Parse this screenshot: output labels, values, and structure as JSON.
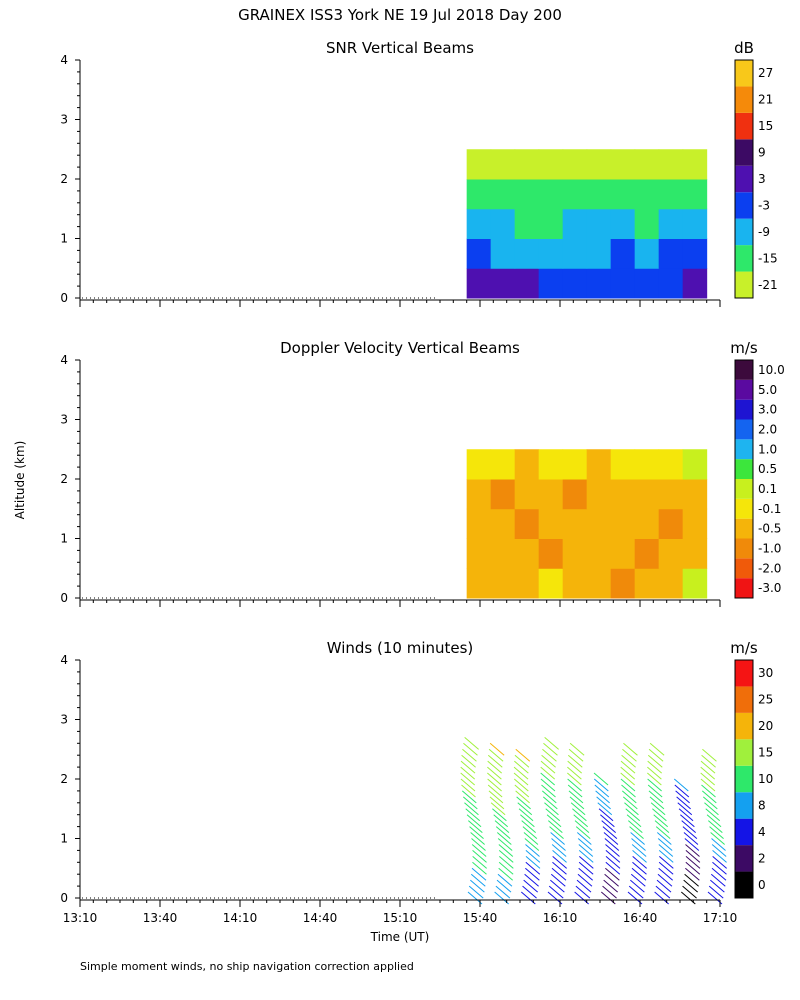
{
  "figure": {
    "title": "GRAINEX ISS3 York NE  19 Jul 2018 Day 200",
    "y_label": "Altitude (km)",
    "x_label": "Time (UT)",
    "footnote": "Simple moment winds, no ship navigation correction applied"
  },
  "colors": {
    "snr": [
      "#c8f02a",
      "#2ee86a",
      "#19b4ef",
      "#0b3ff0",
      "#4e10b0",
      "#3c0a64",
      "#f03010",
      "#f58a0a",
      "#f8c81a"
    ],
    "velocity": [
      "#f01414",
      "#f05a0a",
      "#f08a0a",
      "#f5b40a",
      "#f5e60a",
      "#c8f01e",
      "#3ce63c",
      "#1eb4f0",
      "#1464f0",
      "#1e14d2",
      "#5a0aa0",
      "#3c0a3c"
    ],
    "winds": [
      "#000000",
      "#3c0a64",
      "#1414e6",
      "#14a0f0",
      "#2ee86a",
      "#a0f03c",
      "#f5b40a",
      "#f06e0a",
      "#f51414"
    ]
  },
  "chart_data": [
    {
      "type": "heatmap",
      "name": "snr",
      "title": "SNR Vertical Beams",
      "ylabel": "Altitude (km)",
      "xlabel": "",
      "ylim": [
        0,
        4
      ],
      "xlim": [
        "13:10",
        "17:10"
      ],
      "x_ticks": [
        "13:10",
        "13:40",
        "14:10",
        "14:40",
        "15:10",
        "15:40",
        "16:10",
        "16:40",
        "17:10"
      ],
      "y_ticks": [
        "0",
        "1",
        "2",
        "3",
        "4"
      ],
      "data_start": "15:35",
      "data_end": "17:05",
      "x": [
        "15:35",
        "15:45",
        "15:55",
        "16:05",
        "16:15",
        "16:25",
        "16:35",
        "16:45",
        "16:55",
        "17:05"
      ],
      "y": [
        0.25,
        0.75,
        1.25,
        1.75,
        2.25
      ],
      "values": [
        [
          3,
          3,
          3,
          -1,
          -3,
          -3,
          -3,
          -3,
          -1,
          3
        ],
        [
          -3,
          -5,
          -5,
          -7,
          -7,
          -7,
          -3,
          -5,
          -3,
          -3
        ],
        [
          -9,
          -9,
          -11,
          -11,
          -9,
          -9,
          -9,
          -11,
          -9,
          -9
        ],
        [
          -13,
          -15,
          -11,
          -13,
          -15,
          -13,
          -13,
          -13,
          -13,
          -11
        ],
        [
          -21,
          -19,
          -17,
          -17,
          -19,
          -19,
          -21,
          -21,
          -19,
          -21
        ]
      ],
      "colorbar": {
        "unit": "dB",
        "labels": [
          "-21",
          "-15",
          "-9",
          "-3",
          "3",
          "9",
          "15",
          "21",
          "27"
        ]
      }
    },
    {
      "type": "heatmap",
      "name": "doppler_velocity",
      "title": "Doppler Velocity Vertical Beams",
      "ylabel": "Altitude (km)",
      "xlabel": "",
      "ylim": [
        0,
        4
      ],
      "xlim": [
        "13:10",
        "17:10"
      ],
      "x_ticks": [
        "13:10",
        "13:40",
        "14:10",
        "14:40",
        "15:10",
        "15:40",
        "16:10",
        "16:40",
        "17:10"
      ],
      "y_ticks": [
        "0",
        "1",
        "2",
        "3",
        "4"
      ],
      "data_start": "15:35",
      "data_end": "17:05",
      "x": [
        "15:35",
        "15:45",
        "15:55",
        "16:05",
        "16:15",
        "16:25",
        "16:35",
        "16:45",
        "16:55",
        "17:05"
      ],
      "y": [
        0.25,
        0.75,
        1.25,
        1.75,
        2.25
      ],
      "values": [
        [
          -0.3,
          -0.5,
          -0.3,
          0.0,
          -0.3,
          -0.5,
          -0.8,
          -0.3,
          -0.5,
          0.3
        ],
        [
          -0.5,
          -0.3,
          -0.5,
          -0.8,
          -0.5,
          -0.3,
          -0.5,
          -0.8,
          -0.3,
          -0.5
        ],
        [
          -0.3,
          -0.5,
          -0.8,
          -0.5,
          -0.3,
          -0.5,
          -0.3,
          -0.5,
          -0.8,
          -0.3
        ],
        [
          -0.5,
          -0.8,
          -0.5,
          -0.3,
          -0.8,
          -0.5,
          -0.3,
          -0.5,
          -0.3,
          -0.5
        ],
        [
          0.05,
          0.0,
          -0.3,
          0.0,
          0.05,
          -0.3,
          0.0,
          0.0,
          0.0,
          0.3
        ]
      ],
      "colorbar": {
        "unit": "m/s",
        "labels": [
          "-3.0",
          "-2.0",
          "-1.0",
          "-0.5",
          "-0.1",
          "0.1",
          "0.5",
          "1.0",
          "2.0",
          "3.0",
          "5.0",
          "10.0"
        ]
      }
    },
    {
      "type": "scatter",
      "name": "winds",
      "title": "Winds (10 minutes)",
      "ylabel": "Altitude (km)",
      "xlabel": "Time (UT)",
      "ylim": [
        0,
        4
      ],
      "xlim": [
        "13:10",
        "17:10"
      ],
      "x_ticks": [
        "13:10",
        "13:40",
        "14:10",
        "14:40",
        "15:10",
        "15:40",
        "16:10",
        "16:40",
        "17:10"
      ],
      "y_ticks": [
        "0",
        "1",
        "2",
        "3",
        "4"
      ],
      "profile_times": [
        "15:35",
        "15:45",
        "15:55",
        "16:05",
        "16:15",
        "16:25",
        "16:35",
        "16:45",
        "16:55",
        "17:05"
      ],
      "profiles": [
        {
          "time": "15:35",
          "top_km": 2.7,
          "speed_bottom": 8,
          "speed_top": 18
        },
        {
          "time": "15:45",
          "top_km": 2.6,
          "speed_bottom": 8,
          "speed_top": 20
        },
        {
          "time": "15:55",
          "top_km": 2.5,
          "speed_bottom": 4,
          "speed_top": 20
        },
        {
          "time": "16:05",
          "top_km": 2.7,
          "speed_bottom": 4,
          "speed_top": 18
        },
        {
          "time": "16:15",
          "top_km": 2.6,
          "speed_bottom": 4,
          "speed_top": 18
        },
        {
          "time": "16:25",
          "top_km": 2.1,
          "speed_bottom": 2,
          "speed_top": 10
        },
        {
          "time": "16:35",
          "top_km": 2.6,
          "speed_bottom": 4,
          "speed_top": 18
        },
        {
          "time": "16:45",
          "top_km": 2.6,
          "speed_bottom": 4,
          "speed_top": 18
        },
        {
          "time": "16:55",
          "top_km": 2.0,
          "speed_bottom": 0,
          "speed_top": 8
        },
        {
          "time": "17:05",
          "top_km": 2.5,
          "speed_bottom": 4,
          "speed_top": 18
        }
      ],
      "colorbar": {
        "unit": "m/s",
        "labels": [
          "0",
          "2",
          "4",
          "8",
          "10",
          "15",
          "20",
          "25",
          "30"
        ]
      }
    }
  ]
}
